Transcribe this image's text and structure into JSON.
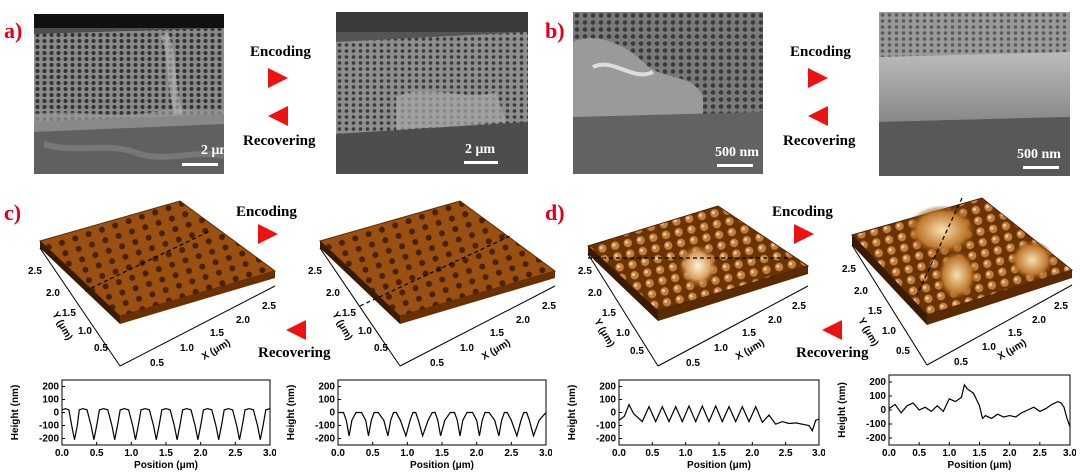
{
  "panels": {
    "a": {
      "label": "a)",
      "scale_left": "2 μm",
      "scale_right": "2 μm"
    },
    "b": {
      "label": "b)",
      "scale_left": "500 nm",
      "scale_right": "500 nm"
    },
    "c": {
      "label": "c)"
    },
    "d": {
      "label": "d)"
    }
  },
  "arrows": {
    "encoding": "Encoding",
    "recovering": "Recovering"
  },
  "afm_axes": {
    "y_label": "Y (μm)",
    "x_label": "X (μm)",
    "y_ticks": [
      "0.5",
      "1.0",
      "1.5",
      "2.0",
      "2.5"
    ],
    "x_ticks": [
      "0.5",
      "1.0",
      "1.5",
      "2.0",
      "2.5"
    ]
  },
  "chart_data": [
    {
      "type": "line",
      "panel": "c-left",
      "xlabel": "Position (μm)",
      "ylabel": "Height (nm)",
      "xlim": [
        0,
        3.0
      ],
      "ylim": [
        -250,
        250
      ],
      "x_ticks": [
        "0.0",
        "0.5",
        "1.0",
        "1.5",
        "2.0",
        "2.5",
        "3.0"
      ],
      "y_ticks": [
        "200",
        "100",
        "0",
        "-100",
        "-200"
      ],
      "x": [
        0,
        0.05,
        0.1,
        0.14,
        0.18,
        0.22,
        0.25,
        0.3,
        0.36,
        0.42,
        0.46,
        0.5,
        0.54,
        0.6,
        0.66,
        0.72,
        0.76,
        0.8,
        0.84,
        0.9,
        0.96,
        1.02,
        1.06,
        1.1,
        1.14,
        1.2,
        1.26,
        1.32,
        1.36,
        1.4,
        1.44,
        1.5,
        1.56,
        1.62,
        1.66,
        1.7,
        1.74,
        1.8,
        1.86,
        1.92,
        1.96,
        2.0,
        2.04,
        2.1,
        2.16,
        2.22,
        2.26,
        2.3,
        2.34,
        2.4,
        2.46,
        2.52,
        2.56,
        2.6,
        2.64,
        2.7,
        2.76,
        2.82,
        2.86,
        2.9,
        2.94,
        3.0
      ],
      "y": [
        20,
        30,
        20,
        -100,
        -210,
        -100,
        20,
        30,
        20,
        -100,
        -210,
        -100,
        20,
        30,
        20,
        -100,
        -210,
        -100,
        20,
        30,
        20,
        -100,
        -210,
        -100,
        20,
        30,
        20,
        -100,
        -210,
        -100,
        20,
        30,
        20,
        -100,
        -210,
        -100,
        20,
        30,
        20,
        -100,
        -210,
        -100,
        20,
        30,
        20,
        -100,
        -210,
        -100,
        20,
        30,
        20,
        -100,
        -210,
        -100,
        20,
        30,
        20,
        -100,
        -210,
        -100,
        20,
        30
      ]
    },
    {
      "type": "line",
      "panel": "c-right",
      "xlabel": "Position (μm)",
      "ylabel": "Height (nm)",
      "xlim": [
        0,
        3.0
      ],
      "ylim": [
        -250,
        250
      ],
      "x_ticks": [
        "0.0",
        "0.5",
        "1.0",
        "1.5",
        "2.0",
        "2.5",
        "3.0"
      ],
      "y_ticks": [
        "200",
        "100",
        "0",
        "-100",
        "-200"
      ],
      "x": [
        0,
        0.08,
        0.12,
        0.16,
        0.2,
        0.26,
        0.34,
        0.4,
        0.44,
        0.48,
        0.52,
        0.58,
        0.66,
        0.72,
        0.76,
        0.8,
        0.84,
        0.9,
        0.98,
        1.04,
        1.08,
        1.12,
        1.16,
        1.22,
        1.3,
        1.36,
        1.4,
        1.44,
        1.48,
        1.54,
        1.62,
        1.68,
        1.72,
        1.76,
        1.8,
        1.86,
        1.94,
        2.0,
        2.04,
        2.08,
        2.12,
        2.18,
        2.26,
        2.32,
        2.36,
        2.4,
        2.44,
        2.5,
        2.58,
        2.64,
        2.68,
        2.72,
        2.76,
        2.82,
        2.9,
        3.0
      ],
      "y": [
        0,
        0,
        -60,
        -180,
        -60,
        0,
        0,
        -60,
        -180,
        -60,
        0,
        0,
        -60,
        -180,
        -60,
        0,
        0,
        -60,
        -180,
        -60,
        0,
        0,
        -60,
        -180,
        -60,
        0,
        0,
        -60,
        -180,
        -60,
        0,
        0,
        -60,
        -180,
        -60,
        0,
        0,
        -60,
        -180,
        -60,
        0,
        0,
        -60,
        -180,
        -60,
        0,
        0,
        -60,
        -180,
        -60,
        0,
        0,
        -60,
        -180,
        -60,
        0
      ]
    },
    {
      "type": "line",
      "panel": "d-left",
      "xlabel": "Position (μm)",
      "ylabel": "Height (nm)",
      "xlim": [
        0,
        3.0
      ],
      "ylim": [
        -250,
        250
      ],
      "x_ticks": [
        "0.0",
        "0.5",
        "1.0",
        "1.5",
        "2.0",
        "2.5",
        "3.0"
      ],
      "y_ticks": [
        "200",
        "100",
        "0",
        "-100",
        "-200"
      ],
      "x": [
        0,
        0.08,
        0.15,
        0.22,
        0.35,
        0.45,
        0.55,
        0.65,
        0.75,
        0.85,
        0.95,
        1.05,
        1.15,
        1.25,
        1.35,
        1.45,
        1.55,
        1.65,
        1.75,
        1.85,
        1.95,
        2.05,
        2.15,
        2.25,
        2.35,
        2.45,
        2.55,
        2.65,
        2.75,
        2.85,
        2.9,
        2.95,
        3.0
      ],
      "y": [
        -60,
        -30,
        60,
        -10,
        -70,
        45,
        -70,
        45,
        -70,
        45,
        -70,
        50,
        -70,
        50,
        -70,
        50,
        -70,
        45,
        -70,
        45,
        -70,
        45,
        -75,
        -20,
        -90,
        -70,
        -85,
        -80,
        -90,
        -100,
        -140,
        -60,
        -50
      ]
    },
    {
      "type": "line",
      "panel": "d-right",
      "xlabel": "Position (μm)",
      "ylabel": "Height (nm)",
      "xlim": [
        0,
        3.0
      ],
      "ylim": [
        -250,
        250
      ],
      "x_ticks": [
        "0.0",
        "0.5",
        "1.0",
        "1.5",
        "2.0",
        "2.5",
        "3.0"
      ],
      "y_ticks": [
        "200",
        "100",
        "0",
        "-100",
        "-200"
      ],
      "x": [
        0,
        0.1,
        0.2,
        0.3,
        0.4,
        0.5,
        0.6,
        0.7,
        0.8,
        0.9,
        1.0,
        1.1,
        1.2,
        1.25,
        1.3,
        1.4,
        1.5,
        1.55,
        1.6,
        1.7,
        1.8,
        1.9,
        2.0,
        2.1,
        2.2,
        2.3,
        2.4,
        2.5,
        2.6,
        2.7,
        2.8,
        2.85,
        2.9,
        2.95,
        3.0
      ],
      "y": [
        10,
        40,
        -20,
        30,
        50,
        0,
        20,
        -10,
        30,
        -10,
        80,
        60,
        90,
        180,
        150,
        120,
        30,
        -60,
        -40,
        -60,
        -30,
        -50,
        -40,
        -50,
        -20,
        0,
        20,
        -10,
        10,
        40,
        60,
        50,
        20,
        -60,
        -120
      ]
    }
  ]
}
